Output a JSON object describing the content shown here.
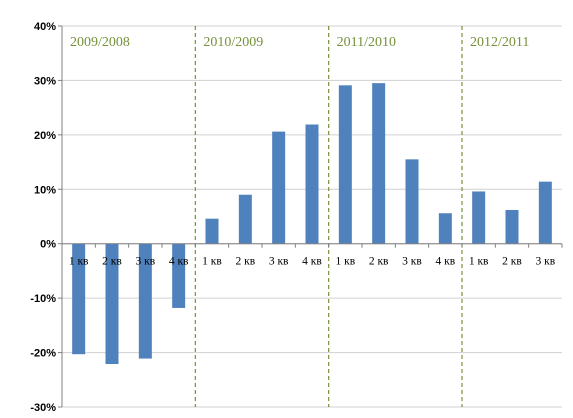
{
  "chart_data": {
    "type": "bar",
    "title": "",
    "xlabel": "",
    "ylabel": "",
    "ylim": [
      -0.3,
      0.4
    ],
    "yticks": [
      {
        "value": 0.4,
        "label": "40%"
      },
      {
        "value": 0.3,
        "label": "30%"
      },
      {
        "value": 0.2,
        "label": "20%"
      },
      {
        "value": 0.1,
        "label": "10%"
      },
      {
        "value": 0.0,
        "label": "0%"
      },
      {
        "value": -0.1,
        "label": "-10%"
      },
      {
        "value": -0.2,
        "label": "-20%"
      },
      {
        "value": -0.3,
        "label": "-30%"
      }
    ],
    "grid": true,
    "legend": "none",
    "bar_color": "#4f81bd",
    "grid_color": "#d0d0d0",
    "divider_color": "#76923c",
    "period_label_color": "#76923c",
    "groups": [
      {
        "label": "2009/2008",
        "categories": [
          "1 кв",
          "2 кв",
          "3 кв",
          "4 кв"
        ],
        "values": [
          -0.203,
          -0.221,
          -0.211,
          -0.118
        ]
      },
      {
        "label": "2010/2009",
        "categories": [
          "1 кв",
          "2 кв",
          "3 кв",
          "4 кв"
        ],
        "values": [
          0.046,
          0.09,
          0.206,
          0.219
        ]
      },
      {
        "label": "2011/2010",
        "categories": [
          "1 кв",
          "2 кв",
          "3 кв",
          "4 кв"
        ],
        "values": [
          0.291,
          0.295,
          0.155,
          0.056
        ]
      },
      {
        "label": "2012/2011",
        "categories": [
          "1 кв",
          "2 кв",
          "3 кв"
        ],
        "values": [
          0.096,
          0.062,
          0.114
        ]
      }
    ]
  }
}
